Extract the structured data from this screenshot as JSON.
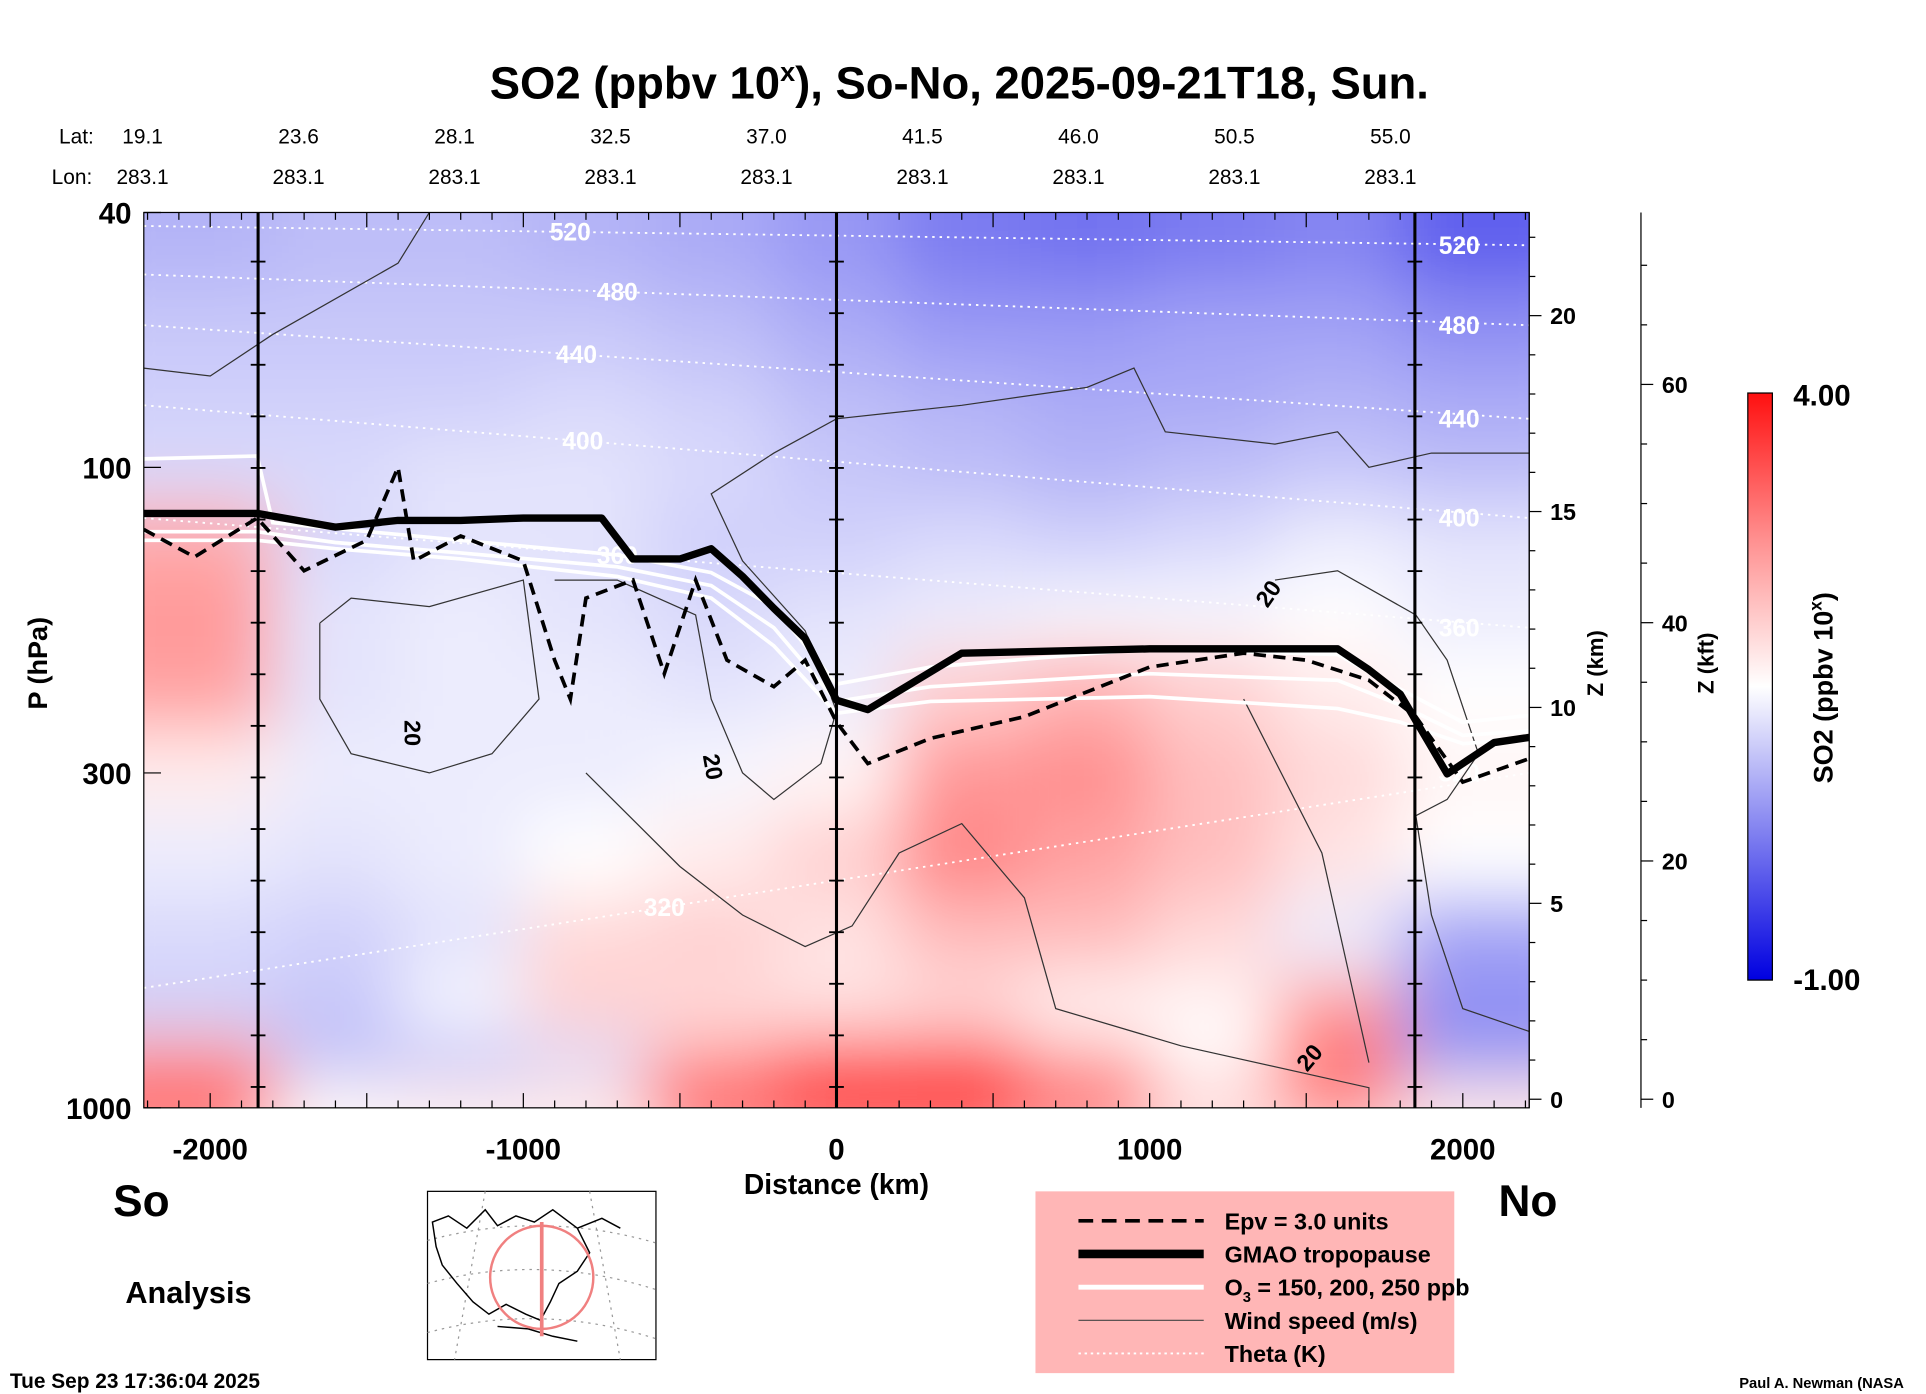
{
  "chart_data": {
    "type": "heatmap",
    "title_pre": "SO2 (ppbv 10",
    "title_sup": "x",
    "title_post": "), So-No, 2025-09-21T18, Sun.",
    "lat_label": "Lat:",
    "lon_label": "Lon:",
    "lats": [
      "19.1",
      "23.6",
      "28.1",
      "32.5",
      "37.0",
      "41.5",
      "46.0",
      "50.5",
      "55.0"
    ],
    "lons": [
      "283.1",
      "283.1",
      "283.1",
      "283.1",
      "283.1",
      "283.1",
      "283.1",
      "283.1",
      "283.1"
    ],
    "xlabel": "Distance (km)",
    "ylabel": "P (hPa)",
    "xlim": [
      -2212,
      2212
    ],
    "ylim": [
      1000,
      40
    ],
    "xticks": [
      -2000,
      -1000,
      0,
      1000,
      2000
    ],
    "xtick_labels": [
      "-2000",
      "-1000",
      "0",
      "1000",
      "2000"
    ],
    "yticks": [
      40,
      100,
      300,
      1000
    ],
    "ytick_labels": [
      "40",
      "100",
      "300",
      "1000"
    ],
    "z_km_label": "Z (km)",
    "z_km_ticks": [
      {
        "v": 0,
        "label": "0"
      },
      {
        "v": 5,
        "label": "5"
      },
      {
        "v": 10,
        "label": "10"
      },
      {
        "v": 15,
        "label": "15"
      },
      {
        "v": 20,
        "label": "20"
      }
    ],
    "z_kft_label": "Z (kft)",
    "z_kft_ticks": [
      {
        "v": 0,
        "label": "0"
      },
      {
        "v": 20,
        "label": "20"
      },
      {
        "v": 40,
        "label": "40"
      },
      {
        "v": 60,
        "label": "60"
      }
    ],
    "section_markers_km": [
      -1847,
      0,
      1847
    ],
    "colorbar": {
      "label_pre": "SO2 (ppbv 10",
      "label_sup": "x",
      "label_post": ")",
      "min": -1.0,
      "max": 4.0,
      "min_label": "-1.00",
      "max_label": "4.00"
    },
    "field": {
      "x_km": [
        -2000,
        -1600,
        -1200,
        -800,
        -400,
        0,
        400,
        800,
        1200,
        1600,
        2000
      ],
      "p_hpa": [
        45,
        60,
        80,
        100,
        130,
        170,
        220,
        300,
        400,
        550,
        700,
        850,
        950
      ],
      "values": [
        [
          0.7,
          0.8,
          0.8,
          0.7,
          0.6,
          0.4,
          0.1,
          0.0,
          0.1,
          0.2,
          -0.2
        ],
        [
          0.9,
          0.9,
          0.9,
          0.9,
          0.8,
          0.6,
          0.4,
          0.4,
          0.5,
          0.5,
          0.3
        ],
        [
          1.0,
          1.0,
          1.0,
          1.1,
          1.0,
          0.8,
          0.7,
          0.6,
          0.6,
          0.7,
          0.6
        ],
        [
          1.1,
          1.1,
          1.2,
          1.2,
          1.1,
          0.9,
          0.8,
          0.7,
          0.8,
          0.9,
          0.8
        ],
        [
          2.4,
          1.1,
          1.2,
          1.2,
          1.0,
          1.0,
          1.1,
          1.0,
          1.1,
          1.3,
          1.2
        ],
        [
          2.6,
          1.2,
          1.3,
          1.2,
          1.1,
          1.2,
          1.3,
          1.4,
          1.4,
          1.5,
          1.3
        ],
        [
          2.5,
          1.2,
          1.3,
          1.3,
          1.2,
          1.3,
          2.0,
          2.3,
          2.0,
          1.7,
          1.5
        ],
        [
          1.7,
          1.3,
          1.3,
          1.3,
          1.4,
          1.6,
          2.6,
          2.7,
          2.2,
          1.9,
          1.6
        ],
        [
          1.3,
          1.2,
          1.3,
          1.5,
          1.7,
          2.0,
          2.8,
          2.5,
          2.2,
          1.8,
          1.5
        ],
        [
          1.1,
          1.0,
          1.2,
          1.9,
          2.0,
          1.8,
          2.2,
          2.2,
          1.9,
          1.3,
          0.5
        ],
        [
          1.0,
          0.9,
          1.4,
          2.0,
          1.9,
          1.8,
          1.9,
          1.6,
          1.6,
          2.5,
          0.3
        ],
        [
          2.5,
          0.8,
          0.8,
          1.1,
          2.4,
          3.2,
          3.3,
          2.3,
          1.5,
          3.3,
          0.4
        ],
        [
          3.5,
          1.6,
          1.7,
          1.8,
          3.5,
          3.8,
          3.8,
          3.2,
          2.0,
          2.6,
          1.8
        ]
      ]
    },
    "tropopause": [
      [
        -2212,
        118
      ],
      [
        -1850,
        118
      ],
      [
        -1600,
        124
      ],
      [
        -1400,
        121
      ],
      [
        -1200,
        121
      ],
      [
        -1000,
        120
      ],
      [
        -750,
        120
      ],
      [
        -650,
        139
      ],
      [
        -500,
        139
      ],
      [
        -400,
        134
      ],
      [
        -300,
        148
      ],
      [
        -200,
        166
      ],
      [
        -100,
        185
      ],
      [
        0,
        231
      ],
      [
        100,
        239
      ],
      [
        400,
        195
      ],
      [
        1000,
        192
      ],
      [
        1600,
        192
      ],
      [
        1700,
        207
      ],
      [
        1800,
        226
      ],
      [
        1950,
        301
      ],
      [
        2100,
        269
      ],
      [
        2212,
        264
      ]
    ],
    "epv": [
      [
        -2212,
        125
      ],
      [
        -2050,
        138
      ],
      [
        -1850,
        120
      ],
      [
        -1700,
        145
      ],
      [
        -1500,
        130
      ],
      [
        -1400,
        100
      ],
      [
        -1350,
        140
      ],
      [
        -1200,
        128
      ],
      [
        -1000,
        140
      ],
      [
        -900,
        200
      ],
      [
        -850,
        230
      ],
      [
        -800,
        160
      ],
      [
        -650,
        150
      ],
      [
        -550,
        210
      ],
      [
        -450,
        150
      ],
      [
        -350,
        200
      ],
      [
        -200,
        220
      ],
      [
        -100,
        200
      ],
      [
        0,
        250
      ],
      [
        100,
        290
      ],
      [
        300,
        265
      ],
      [
        600,
        245
      ],
      [
        1000,
        205
      ],
      [
        1300,
        195
      ],
      [
        1500,
        200
      ],
      [
        1700,
        215
      ],
      [
        1850,
        245
      ],
      [
        2000,
        310
      ],
      [
        2212,
        285
      ]
    ],
    "ozone": [
      [
        [
          -2212,
          97
        ],
        [
          -1850,
          96
        ],
        [
          -1800,
          122
        ],
        [
          -1200,
          130
        ],
        [
          -700,
          137
        ],
        [
          -400,
          146
        ],
        [
          -200,
          165
        ],
        [
          0,
          218
        ],
        [
          300,
          205
        ],
        [
          1000,
          192
        ],
        [
          1600,
          196
        ],
        [
          1800,
          222
        ],
        [
          2000,
          250
        ],
        [
          2212,
          244
        ]
      ],
      [
        [
          -2212,
          126
        ],
        [
          -1850,
          126
        ],
        [
          -1600,
          131
        ],
        [
          -1200,
          136
        ],
        [
          -700,
          143
        ],
        [
          -400,
          153
        ],
        [
          -200,
          178
        ],
        [
          0,
          232
        ],
        [
          300,
          220
        ],
        [
          1000,
          210
        ],
        [
          1600,
          215
        ],
        [
          1800,
          235
        ],
        [
          2000,
          262
        ],
        [
          2212,
          258
        ]
      ],
      [
        [
          -2212,
          130
        ],
        [
          -1850,
          130
        ],
        [
          -1600,
          134
        ],
        [
          -1200,
          139
        ],
        [
          -700,
          148
        ],
        [
          -400,
          160
        ],
        [
          -200,
          190
        ],
        [
          0,
          242
        ],
        [
          300,
          232
        ],
        [
          1000,
          228
        ],
        [
          1600,
          238
        ],
        [
          1800,
          250
        ],
        [
          2000,
          270
        ],
        [
          2212,
          265
        ]
      ]
    ],
    "wind_20": [
      [
        [
          -2212,
          70
        ],
        [
          -2000,
          72
        ],
        [
          -1800,
          62
        ],
        [
          -1400,
          48
        ],
        [
          -1300,
          40
        ]
      ],
      [
        [
          -1650,
          175
        ],
        [
          -1550,
          160
        ],
        [
          -1300,
          165
        ],
        [
          -1000,
          150
        ],
        [
          -950,
          230
        ],
        [
          -1100,
          280
        ],
        [
          -1300,
          300
        ],
        [
          -1550,
          280
        ],
        [
          -1650,
          230
        ],
        [
          -1650,
          175
        ]
      ],
      [
        [
          -900,
          150
        ],
        [
          -700,
          150
        ],
        [
          -450,
          170
        ],
        [
          -400,
          230
        ],
        [
          -300,
          300
        ],
        [
          -200,
          330
        ],
        [
          -50,
          290
        ],
        [
          0,
          240
        ],
        [
          -100,
          180
        ],
        [
          -300,
          140
        ],
        [
          -400,
          110
        ],
        [
          -200,
          95
        ],
        [
          0,
          84
        ],
        [
          400,
          80
        ],
        [
          800,
          75
        ],
        [
          950,
          70
        ],
        [
          1050,
          88
        ],
        [
          1400,
          92
        ],
        [
          1600,
          88
        ],
        [
          1700,
          100
        ],
        [
          1900,
          95
        ],
        [
          2212,
          95
        ]
      ],
      [
        [
          -800,
          300
        ],
        [
          -500,
          420
        ],
        [
          -300,
          500
        ],
        [
          -100,
          560
        ],
        [
          50,
          520
        ],
        [
          200,
          400
        ],
        [
          400,
          360
        ],
        [
          600,
          470
        ],
        [
          700,
          700
        ],
        [
          1100,
          800
        ],
        [
          1700,
          930
        ],
        [
          1700,
          1000
        ]
      ],
      [
        [
          1400,
          150
        ],
        [
          1600,
          145
        ],
        [
          1850,
          170
        ],
        [
          1950,
          200
        ],
        [
          2050,
          280
        ],
        [
          1950,
          330
        ],
        [
          1850,
          350
        ],
        [
          1900,
          500
        ],
        [
          2000,
          700
        ],
        [
          2212,
          760
        ]
      ],
      [
        [
          1300,
          230
        ],
        [
          1550,
          400
        ],
        [
          1700,
          850
        ]
      ]
    ],
    "wind_label": "20",
    "theta": [
      {
        "label": "520",
        "p_left": 42,
        "p_right": 45,
        "label_x": -850
      },
      {
        "label": "480",
        "p_left": 50,
        "p_right": 60,
        "label_x": -700
      },
      {
        "label": "440",
        "p_left": 60,
        "p_right": 84,
        "label_x": -830
      },
      {
        "label": "400",
        "p_left": 80,
        "p_right": 120,
        "label_x": -810
      },
      {
        "label": "360",
        "p_left": 120,
        "p_right": 178,
        "label_x": -700
      },
      {
        "label": "320",
        "p_left": 650,
        "p_right": 300,
        "label_x": -550
      }
    ],
    "legend": {
      "placement": "bottom-center",
      "items": [
        {
          "style": "dashed",
          "label": "Epv = 3.0 units"
        },
        {
          "style": "thick",
          "label": "GMAO tropopause"
        },
        {
          "style": "white",
          "label_pre": "O",
          "label_sub": "3",
          "label_post": " = 150, 200, 250 ppb"
        },
        {
          "style": "thin",
          "label": "Wind speed (m/s)"
        },
        {
          "style": "dotted",
          "label": "Theta (K)"
        }
      ]
    },
    "south_label": "So",
    "north_label": "No",
    "analysis_label": "Analysis",
    "timestamp": "Tue Sep 23 17:36:04 2025",
    "credit": "Paul A. Newman (NASA"
  },
  "colors": {
    "legend_bg": "#ffb6b6",
    "blue": "#0000ff",
    "red": "#ff0000",
    "map_track": "#f08080"
  }
}
